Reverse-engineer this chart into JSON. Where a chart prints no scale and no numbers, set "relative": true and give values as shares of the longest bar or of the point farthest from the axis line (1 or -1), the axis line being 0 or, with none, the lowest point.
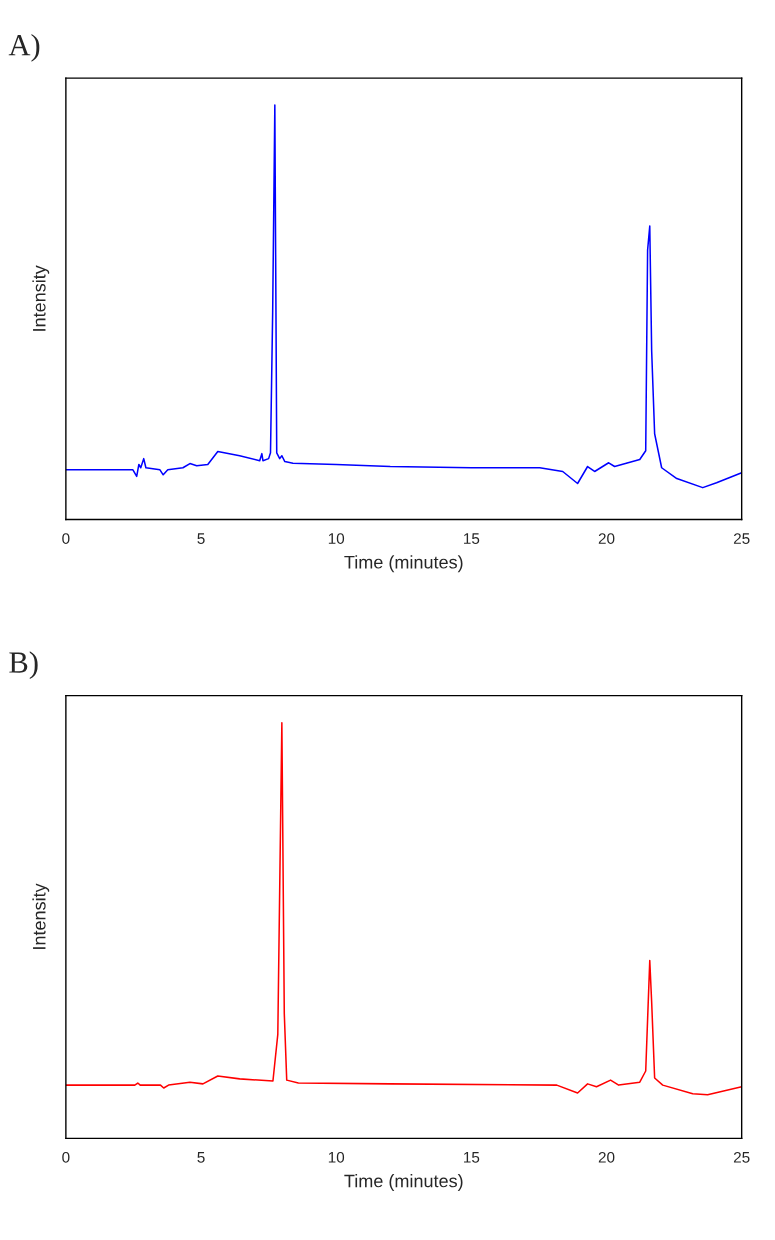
{
  "chart_data": [
    {
      "type": "line",
      "title": "A)",
      "xlabel": "Time (minutes)",
      "ylabel": "Intensity",
      "relative": true,
      "xlim": [
        0,
        25
      ],
      "xticks": [
        0,
        5,
        10,
        15,
        20,
        25
      ],
      "grid": false,
      "tick_labels": "x",
      "series": [
        {
          "color": "#0000ff",
          "x": [
            0,
            2.48,
            2.62,
            2.7,
            2.77,
            2.88,
            2.96,
            3.48,
            3.6,
            3.77,
            4.33,
            4.59,
            4.84,
            5.25,
            5.62,
            6.43,
            7.17,
            7.25,
            7.29,
            7.5,
            7.57,
            7.65,
            7.73,
            7.8,
            7.91,
            7.99,
            8.1,
            8.4,
            10,
            12,
            15,
            17.53,
            18.38,
            18.93,
            19.3,
            19.56,
            20.08,
            20.3,
            21.23,
            21.45,
            21.52,
            21.6,
            21.67,
            21.78,
            22.04,
            22.6,
            23.56,
            24.07,
            25
          ],
          "values": [
            0.12,
            0.12,
            0.104,
            0.133,
            0.125,
            0.147,
            0.125,
            0.12,
            0.108,
            0.12,
            0.125,
            0.135,
            0.13,
            0.133,
            0.164,
            0.154,
            0.142,
            0.159,
            0.142,
            0.147,
            0.161,
            0.5,
            1.0,
            0.161,
            0.147,
            0.154,
            0.14,
            0.136,
            0.133,
            0.128,
            0.125,
            0.125,
            0.116,
            0.087,
            0.128,
            0.116,
            0.137,
            0.128,
            0.145,
            0.166,
            0.65,
            0.708,
            0.407,
            0.207,
            0.125,
            0.099,
            0.077,
            0.089,
            0.113
          ]
        }
      ]
    },
    {
      "type": "line",
      "title": "B)",
      "xlabel": "Time (minutes)",
      "ylabel": "Intensity",
      "relative": true,
      "xlim": [
        0,
        25
      ],
      "xticks": [
        0,
        5,
        10,
        15,
        20,
        25
      ],
      "grid": false,
      "tick_labels": "x",
      "series": [
        {
          "color": "#ff0000",
          "x": [
            0,
            2.55,
            2.66,
            2.75,
            3.5,
            3.62,
            3.8,
            4.59,
            5.07,
            5.62,
            6.43,
            7.66,
            7.84,
            7.99,
            8.08,
            8.17,
            8.6,
            12,
            18.16,
            18.93,
            19.3,
            19.63,
            20.15,
            20.45,
            21.23,
            21.45,
            21.6,
            21.67,
            21.78,
            22.08,
            23.19,
            23.74,
            25
          ],
          "values": [
            0.128,
            0.128,
            0.133,
            0.128,
            0.128,
            0.121,
            0.128,
            0.135,
            0.131,
            0.15,
            0.143,
            0.138,
            0.25,
            1.0,
            0.3,
            0.14,
            0.133,
            0.131,
            0.128,
            0.109,
            0.131,
            0.124,
            0.14,
            0.128,
            0.135,
            0.162,
            0.428,
            0.328,
            0.145,
            0.128,
            0.107,
            0.105,
            0.124
          ]
        }
      ]
    }
  ]
}
